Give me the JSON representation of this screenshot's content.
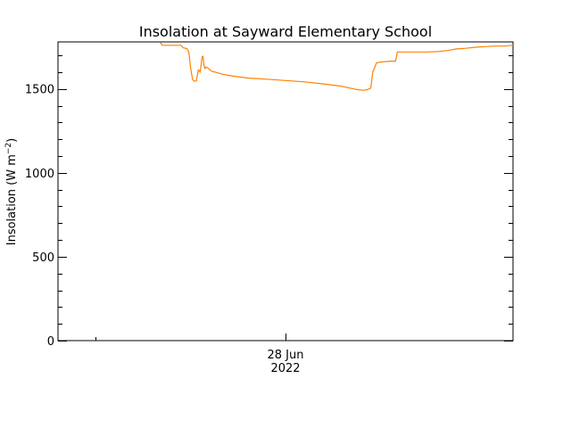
{
  "chart_data": {
    "type": "line",
    "title": "Insolation at Sayward Elementary School",
    "ylabel": "Insolation (W m",
    "ylabel_sup": "−2",
    "ylabel_close": ")",
    "x_tick_label_line1": "28 Jun",
    "x_tick_label_line2": "2022",
    "xlim": [
      0,
      24
    ],
    "ylim": [
      0,
      1780
    ],
    "yticks": [
      0,
      500,
      1000,
      1500
    ],
    "ytick_labels": [
      "0",
      "500",
      "1000",
      "1500"
    ],
    "series": [
      {
        "color": "#ff8000",
        "x": [
          5.4,
          5.5,
          6.5,
          6.6,
          6.8,
          6.9,
          7.0,
          7.1,
          7.2,
          7.3,
          7.4,
          7.5,
          7.6,
          7.65,
          7.7,
          7.75,
          7.8,
          7.9,
          8.0,
          8.1,
          8.3,
          8.6,
          9.0,
          9.5,
          10.0,
          11.0,
          12.0,
          13.0,
          14.0,
          15.0,
          15.4,
          15.8,
          16.1,
          16.3,
          16.4,
          16.5,
          16.6,
          16.8,
          17.0,
          17.5,
          17.8,
          17.9,
          18.0,
          18.5,
          19.0,
          19.5,
          20.0,
          20.5,
          21.0,
          21.5,
          22.0,
          22.5,
          23.0,
          23.5,
          24.0
        ],
        "y": [
          1775,
          1760,
          1760,
          1745,
          1740,
          1720,
          1620,
          1555,
          1545,
          1548,
          1615,
          1600,
          1690,
          1695,
          1640,
          1620,
          1630,
          1625,
          1615,
          1605,
          1600,
          1590,
          1580,
          1572,
          1565,
          1558,
          1550,
          1542,
          1530,
          1515,
          1505,
          1495,
          1492,
          1495,
          1500,
          1505,
          1600,
          1655,
          1660,
          1665,
          1665,
          1720,
          1720,
          1720,
          1720,
          1720,
          1722,
          1728,
          1738,
          1742,
          1748,
          1752,
          1755,
          1755,
          1760
        ]
      }
    ]
  }
}
